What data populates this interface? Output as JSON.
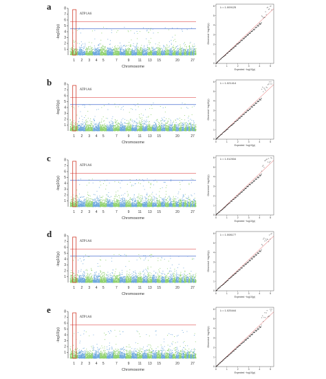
{
  "figure": {
    "panels": [
      {
        "letter": "a",
        "gene_label": "ATP1A6",
        "lambda_text": "λ = 1.009125",
        "color_even": "#8fd16f",
        "color_odd": "#6fa9dd",
        "sig_line": true,
        "sug_line": true
      },
      {
        "letter": "b",
        "gene_label": "ATP1A6",
        "lambda_text": "λ = 1.021414",
        "color_even": "#8fd16f",
        "color_odd": "#6fa9dd",
        "sig_line": true,
        "sug_line": true
      },
      {
        "letter": "c",
        "gene_label": "ATP1A6",
        "lambda_text": "λ = 1.012534",
        "color_even": "#8fd16f",
        "color_odd": "#6fa9dd",
        "sig_line": true,
        "sug_line": true
      },
      {
        "letter": "d",
        "gene_label": "ATP1A6",
        "lambda_text": "λ = 1.008177",
        "color_even": "#8fd16f",
        "color_odd": "#6fa9dd",
        "sig_line": true,
        "sug_line": true
      },
      {
        "letter": "e",
        "gene_label": "ATP1A6",
        "lambda_text": "λ = 1.025444",
        "color_even": "#8fd16f",
        "color_odd": "#6fa9dd",
        "sig_line": true,
        "sug_line": false
      }
    ],
    "colors": {
      "sig": "#e05050",
      "sug": "#4a6fd0",
      "highlight": "#d03a2a",
      "qq_points": "#111111",
      "qq_line": "#e05050"
    }
  },
  "chart_data": {
    "type": "scatter",
    "manhattan": {
      "xlabel": "Chromosome",
      "ylabel": "-log10(p)",
      "y_ticks": [
        1,
        2,
        3,
        4,
        5,
        6,
        7,
        8
      ],
      "ylim": [
        0,
        8
      ],
      "chromosome_ticks": [
        "1",
        "2",
        "3",
        "4",
        "5",
        "7",
        "9",
        "11",
        "13",
        "15",
        "20",
        "27"
      ],
      "chromosome_tick_positions": [
        1,
        2,
        3,
        4,
        5,
        7,
        9,
        11,
        13,
        15,
        20,
        27
      ],
      "chromosome_count": 29,
      "significance_threshold": 5.7,
      "suggestive_threshold": 4.5
    },
    "qq": {
      "xlabel": "Expected −log10(p)",
      "ylabel": "Observed −log10(p)",
      "x_ticks": [
        0,
        1,
        2,
        3,
        4,
        5
      ],
      "y_ticks": [
        0,
        1,
        2,
        3,
        4,
        5,
        6
      ],
      "xlim": [
        0,
        5.3
      ],
      "ylim": [
        0,
        6.2
      ]
    }
  }
}
